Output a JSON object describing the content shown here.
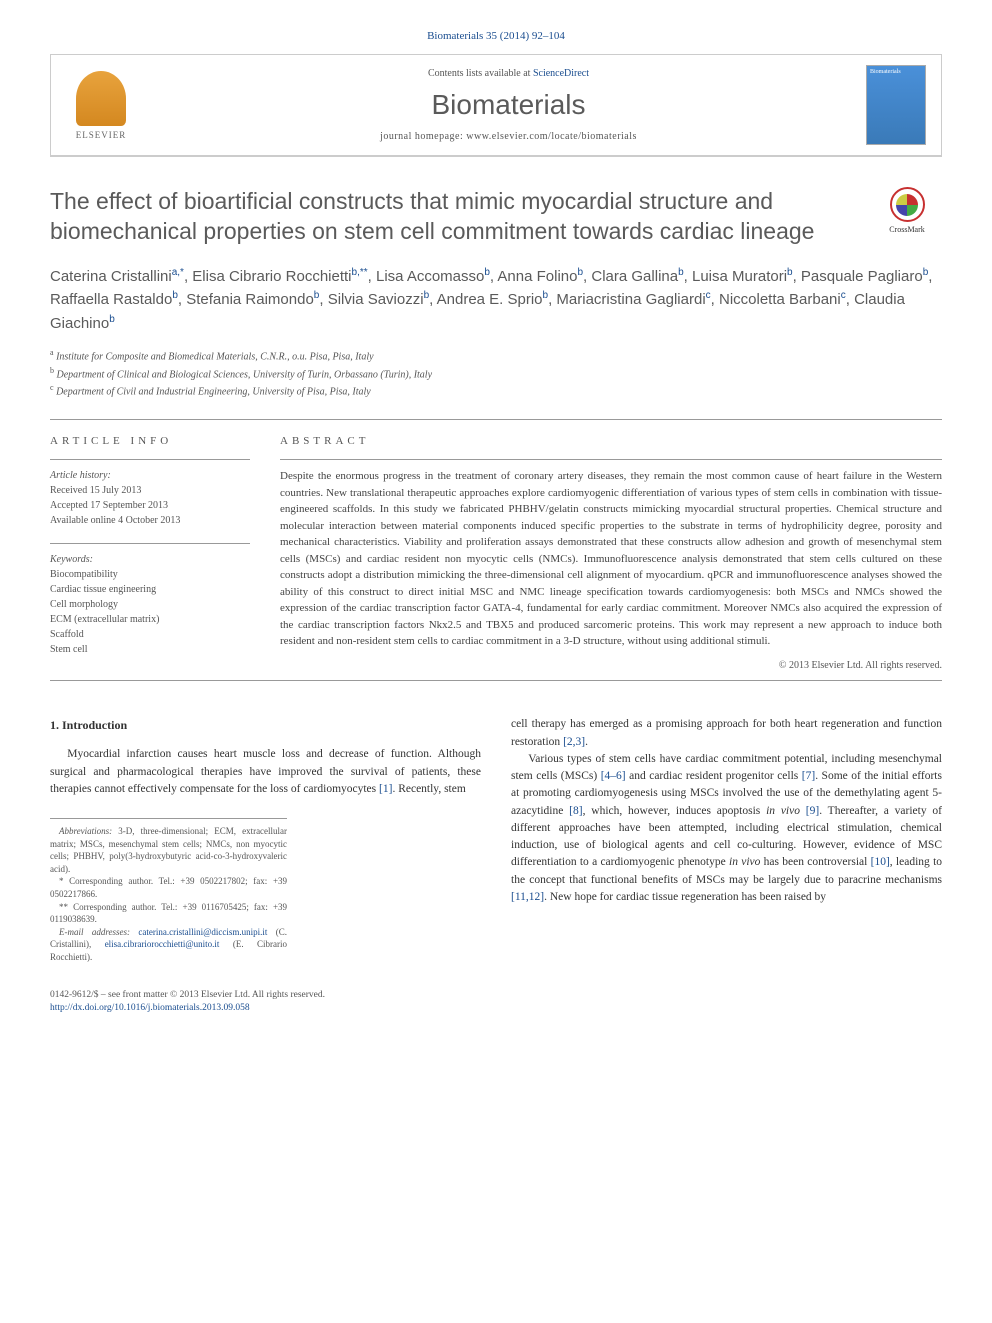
{
  "citation": "Biomaterials 35 (2014) 92–104",
  "header": {
    "contents_prefix": "Contents lists available at ",
    "contents_link": "ScienceDirect",
    "journal_name": "Biomaterials",
    "homepage_label": "journal homepage: ",
    "homepage_url": "www.elsevier.com/locate/biomaterials",
    "publisher": "ELSEVIER",
    "cover_label": "Biomaterials"
  },
  "crossmark_label": "CrossMark",
  "title": "The effect of bioartificial constructs that mimic myocardial structure and biomechanical properties on stem cell commitment towards cardiac lineage",
  "authors_html": "Caterina Cristallini<sup>a,*</sup>, Elisa Cibrario Rocchietti<sup>b,**</sup>, Lisa Accomasso<sup>b</sup>, Anna Folino<sup>b</sup>, Clara Gallina<sup>b</sup>, Luisa Muratori<sup>b</sup>, Pasquale Pagliaro<sup>b</sup>, Raffaella Rastaldo<sup>b</sup>, Stefania Raimondo<sup>b</sup>, Silvia Saviozzi<sup>b</sup>, Andrea E. Sprio<sup>b</sup>, Mariacristina Gagliardi<sup>c</sup>, Niccoletta Barbani<sup>c</sup>, Claudia Giachino<sup>b</sup>",
  "affiliations": [
    "Institute for Composite and Biomedical Materials, C.N.R., o.u. Pisa, Pisa, Italy",
    "Department of Clinical and Biological Sciences, University of Turin, Orbassano (Turin), Italy",
    "Department of Civil and Industrial Engineering, University of Pisa, Pisa, Italy"
  ],
  "aff_sup": [
    "a",
    "b",
    "c"
  ],
  "article_info": {
    "heading": "ARTICLE INFO",
    "history_label": "Article history:",
    "received": "Received 15 July 2013",
    "accepted": "Accepted 17 September 2013",
    "online": "Available online 4 October 2013",
    "keywords_label": "Keywords:",
    "keywords": [
      "Biocompatibility",
      "Cardiac tissue engineering",
      "Cell morphology",
      "ECM (extracellular matrix)",
      "Scaffold",
      "Stem cell"
    ]
  },
  "abstract": {
    "heading": "ABSTRACT",
    "text": "Despite the enormous progress in the treatment of coronary artery diseases, they remain the most common cause of heart failure in the Western countries. New translational therapeutic approaches explore cardiomyogenic differentiation of various types of stem cells in combination with tissue-engineered scaffolds. In this study we fabricated PHBHV/gelatin constructs mimicking myocardial structural properties. Chemical structure and molecular interaction between material components induced specific properties to the substrate in terms of hydrophilicity degree, porosity and mechanical characteristics. Viability and proliferation assays demonstrated that these constructs allow adhesion and growth of mesenchymal stem cells (MSCs) and cardiac resident non myocytic cells (NMCs). Immunofluorescence analysis demonstrated that stem cells cultured on these constructs adopt a distribution mimicking the three-dimensional cell alignment of myocardium. qPCR and immunofluorescence analyses showed the ability of this construct to direct initial MSC and NMC lineage specification towards cardiomyogenesis: both MSCs and NMCs showed the expression of the cardiac transcription factor GATA-4, fundamental for early cardiac commitment. Moreover NMCs also acquired the expression of the cardiac transcription factors Nkx2.5 and TBX5 and produced sarcomeric proteins. This work may represent a new approach to induce both resident and non-resident stem cells to cardiac commitment in a 3-D structure, without using additional stimuli.",
    "copyright": "© 2013 Elsevier Ltd. All rights reserved."
  },
  "body": {
    "introduction_heading": "1. Introduction",
    "left_para": "Myocardial infarction causes heart muscle loss and decrease of function. Although surgical and pharmacological therapies have improved the survival of patients, these therapies cannot effectively compensate for the loss of cardiomyocytes [1]. Recently, stem",
    "right_para1": "cell therapy has emerged as a promising approach for both heart regeneration and function restoration [2,3].",
    "right_para2": "Various types of stem cells have cardiac commitment potential, including mesenchymal stem cells (MSCs) [4–6] and cardiac resident progenitor cells [7]. Some of the initial efforts at promoting cardiomyogenesis using MSCs involved the use of the demethylating agent 5-azacytidine [8], which, however, induces apoptosis in vivo [9]. Thereafter, a variety of different approaches have been attempted, including electrical stimulation, chemical induction, use of biological agents and cell co-culturing. However, evidence of MSC differentiation to a cardiomyogenic phenotype in vivo has been controversial [10], leading to the concept that functional benefits of MSCs may be largely due to paracrine mechanisms [11,12]. New hope for cardiac tissue regeneration has been raised by"
  },
  "footnotes": {
    "abbrev_label": "Abbreviations:",
    "abbrev_text": " 3-D, three-dimensional; ECM, extracellular matrix; MSCs, mesenchymal stem cells; NMCs, non myocytic cells; PHBHV, poly(3-hydroxybutyric acid-co-3-hydroxyvaleric acid).",
    "corr1": "* Corresponding author. Tel.: +39 0502217802; fax: +39 0502217866.",
    "corr2": "** Corresponding author. Tel.: +39 0116705425; fax: +39 0119038639.",
    "email_label": "E-mail addresses:",
    "email1": "caterina.cristallini@diccism.unipi.it",
    "email1_person": " (C. Cristallini), ",
    "email2": "elisa.cibrariorocchietti@unito.it",
    "email2_person": " (E. Cibrario Rocchietti)."
  },
  "footer": {
    "line1": "0142-9612/$ – see front matter © 2013 Elsevier Ltd. All rights reserved.",
    "doi": "http://dx.doi.org/10.1016/j.biomaterials.2013.09.058"
  },
  "ref_links": [
    "[1]",
    "[2,3]",
    "[4–6]",
    "[7]",
    "[8]",
    "[9]",
    "[10]",
    "[11,12]"
  ],
  "colors": {
    "link": "#1a4d8f",
    "heading": "#5a5a5a",
    "body": "#333333",
    "muted": "#555555",
    "border": "#999999"
  }
}
